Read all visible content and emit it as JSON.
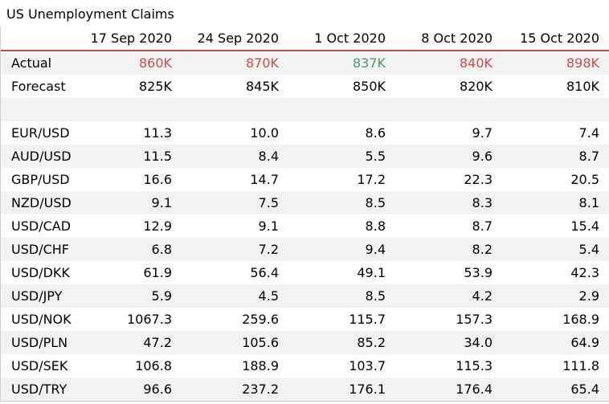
{
  "title": "US Unemployment Claims",
  "columns": [
    "17 Sep 2020",
    "24 Sep 2020",
    "1 Oct 2020",
    "8 Oct 2020",
    "15 Oct 2020"
  ],
  "actual": {
    "label": "Actual",
    "values": [
      "860K",
      "870K",
      "837K",
      "840K",
      "898K"
    ],
    "colors": [
      "#c0504d",
      "#c0504d",
      "#4a9a6a",
      "#c0504d",
      "#c0504d"
    ]
  },
  "forecast": {
    "label": "Forecast",
    "values": [
      "825K",
      "845K",
      "850K",
      "820K",
      "810K"
    ]
  },
  "pairs": [
    {
      "label": "EUR/USD",
      "values": [
        "11.3",
        "10.0",
        "8.6",
        "9.7",
        "7.4"
      ]
    },
    {
      "label": "AUD/USD",
      "values": [
        "11.5",
        "8.4",
        "5.5",
        "9.6",
        "8.7"
      ]
    },
    {
      "label": "GBP/USD",
      "values": [
        "16.6",
        "14.7",
        "17.2",
        "22.3",
        "20.5"
      ]
    },
    {
      "label": "NZD/USD",
      "values": [
        "9.1",
        "7.5",
        "8.5",
        "8.3",
        "8.1"
      ]
    },
    {
      "label": "USD/CAD",
      "values": [
        "12.9",
        "9.1",
        "8.8",
        "8.7",
        "15.4"
      ]
    },
    {
      "label": "USD/CHF",
      "values": [
        "6.8",
        "7.2",
        "9.4",
        "8.2",
        "5.4"
      ]
    },
    {
      "label": "USD/DKK",
      "values": [
        "61.9",
        "56.4",
        "49.1",
        "53.9",
        "42.3"
      ]
    },
    {
      "label": "USD/JPY",
      "values": [
        "5.9",
        "4.5",
        "8.5",
        "4.2",
        "2.9"
      ]
    },
    {
      "label": "USD/NOK",
      "values": [
        "1067.3",
        "259.6",
        "115.7",
        "157.3",
        "168.9"
      ]
    },
    {
      "label": "USD/PLN",
      "values": [
        "47.2",
        "105.6",
        "85.2",
        "34.0",
        "64.9"
      ]
    },
    {
      "label": "USD/SEK",
      "values": [
        "106.8",
        "188.9",
        "103.7",
        "115.3",
        "111.8"
      ]
    },
    {
      "label": "USD/TRY",
      "values": [
        "96.6",
        "237.2",
        "176.1",
        "176.4",
        "65.4"
      ]
    }
  ]
}
